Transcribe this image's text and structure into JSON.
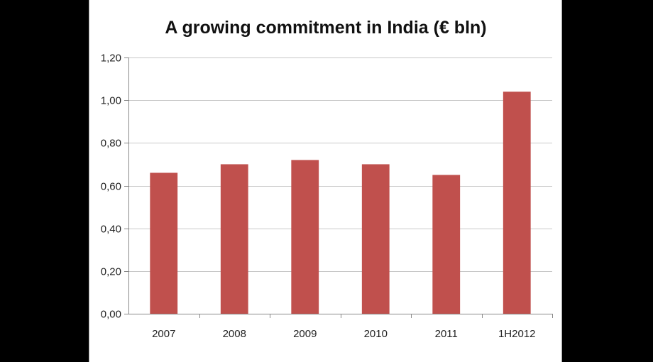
{
  "chart_data": {
    "type": "bar",
    "title": "A growing commitment in India (€ bln)",
    "categories": [
      "2007",
      "2008",
      "2009",
      "2010",
      "2011",
      "1H2012"
    ],
    "values": [
      0.66,
      0.7,
      0.72,
      0.7,
      0.65,
      1.04
    ],
    "ylim": [
      0,
      1.2
    ],
    "yticks": [
      "0,00",
      "0,20",
      "0,40",
      "0,60",
      "0,80",
      "1,00",
      "1,20"
    ],
    "xlabel": "",
    "ylabel": "",
    "grid": true,
    "bar_color": "#c0504d"
  }
}
